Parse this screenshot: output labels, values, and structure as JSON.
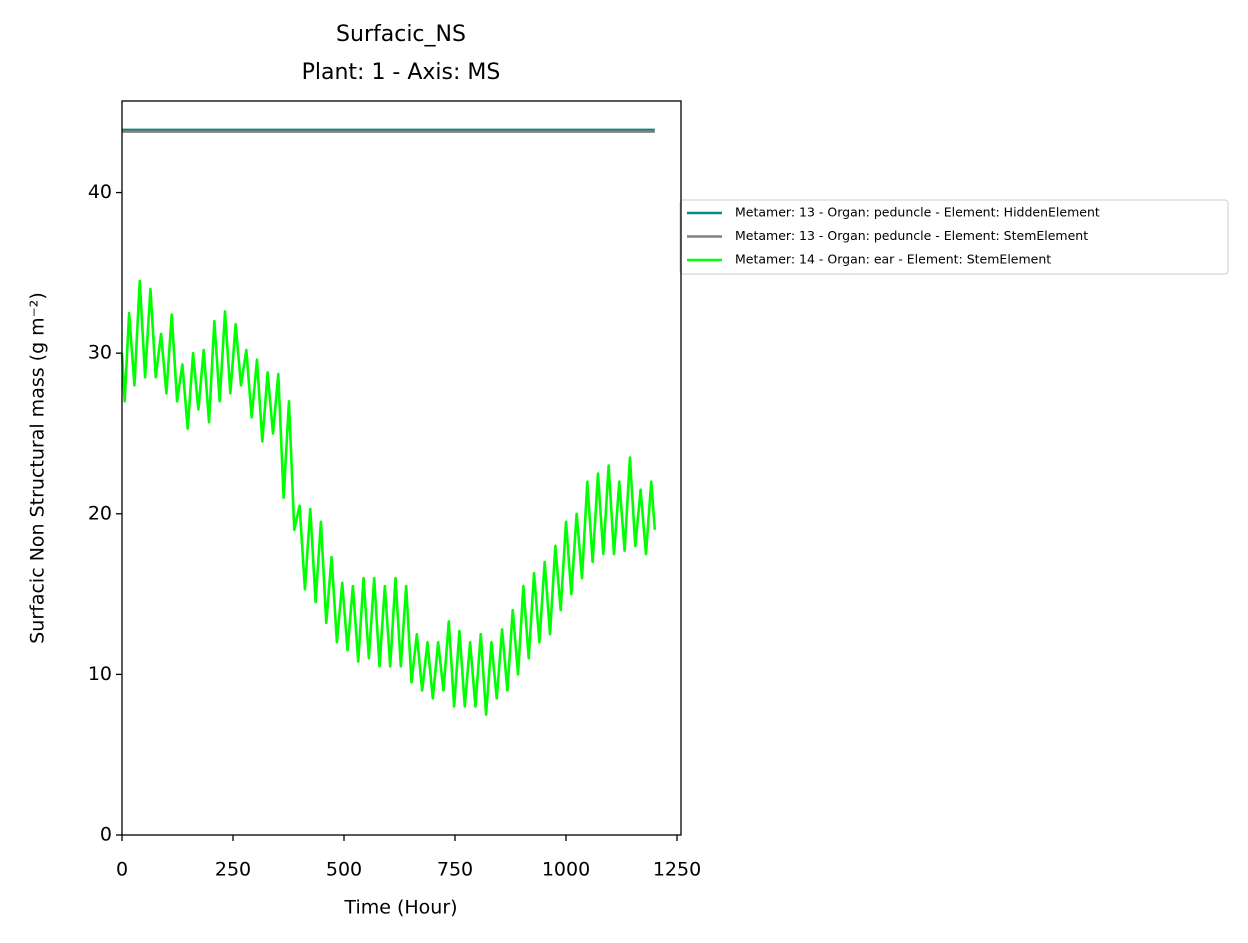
{
  "chart_data": {
    "type": "line",
    "title": "Surfacic_NS",
    "subtitle": "Plant: 1 - Axis: MS",
    "x_label": "Time (Hour)",
    "y_label": "Surfacic Non Structural mass (g m⁻²)",
    "xlim": [
      0,
      1259
    ],
    "ylim": [
      0,
      45.7
    ],
    "xticks": [
      0,
      250,
      500,
      750,
      1000,
      1250
    ],
    "yticks": [
      0,
      10,
      20,
      30,
      40
    ],
    "grid": false,
    "legend": "outside right",
    "series": [
      {
        "name": "Metamer: 13 - Organ: peduncle - Element: HiddenElement",
        "color": "#008b8b",
        "x": [
          0,
          1200
        ],
        "values": [
          43.9,
          43.9
        ]
      },
      {
        "name": "Metamer: 13 - Organ: peduncle - Element: StemElement",
        "color": "#808080",
        "x": [
          0,
          1200
        ],
        "values": [
          43.8,
          43.8
        ]
      },
      {
        "name": "Metamer: 14 - Organ: ear - Element: StemElement",
        "color": "#00ff00",
        "x": [
          0,
          6,
          16,
          28,
          40,
          52,
          64,
          76,
          88,
          100,
          112,
          124,
          136,
          148,
          160,
          172,
          184,
          196,
          208,
          220,
          232,
          244,
          256,
          268,
          280,
          292,
          304,
          316,
          328,
          340,
          352,
          364,
          376,
          388,
          400,
          412,
          424,
          436,
          448,
          460,
          472,
          484,
          496,
          508,
          520,
          532,
          544,
          556,
          568,
          580,
          592,
          604,
          616,
          628,
          640,
          652,
          664,
          676,
          688,
          700,
          712,
          724,
          736,
          748,
          760,
          772,
          784,
          796,
          808,
          820,
          832,
          844,
          856,
          868,
          880,
          892,
          904,
          916,
          928,
          940,
          952,
          964,
          976,
          988,
          1000,
          1012,
          1024,
          1036,
          1048,
          1060,
          1072,
          1084,
          1096,
          1108,
          1120,
          1132,
          1144,
          1156,
          1168,
          1180,
          1192,
          1200
        ],
        "values": [
          30,
          27,
          32.5,
          28,
          34.5,
          28.5,
          34,
          28.5,
          31.2,
          27.5,
          32.4,
          27,
          29.3,
          25.3,
          30,
          26.5,
          30.2,
          25.7,
          32,
          27,
          32.6,
          27.5,
          31.8,
          28,
          30.2,
          26,
          29.6,
          24.5,
          28.8,
          25,
          28.7,
          21,
          27,
          19,
          20.5,
          15.3,
          20.3,
          14.5,
          19.5,
          13.2,
          17.3,
          12,
          15.7,
          11.5,
          15.5,
          10.8,
          16,
          11,
          16,
          10.5,
          15.5,
          10.5,
          16,
          10.5,
          15.5,
          9.5,
          12.5,
          9,
          12,
          8.5,
          12,
          9,
          13.3,
          8,
          12.7,
          8,
          12,
          8,
          12.5,
          7.5,
          12,
          8.5,
          12.8,
          9,
          14,
          10,
          15.5,
          11,
          16.3,
          12,
          17,
          12.5,
          18,
          14,
          19.5,
          15,
          20,
          16,
          22,
          17,
          22.5,
          17.5,
          23,
          17.5,
          22,
          17.7,
          23.5,
          18,
          21.5,
          17.5,
          22,
          19
        ]
      }
    ]
  }
}
